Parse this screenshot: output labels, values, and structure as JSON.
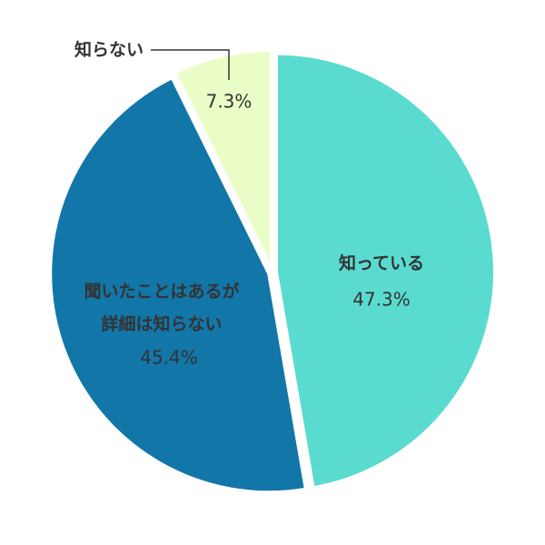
{
  "chart_data": {
    "type": "pie",
    "categories": [
      "知っている",
      "聞いたことはあるが\n詳細は知らない",
      "知らない"
    ],
    "values": [
      47.3,
      45.4,
      7.3
    ],
    "value_labels": [
      "47.3%",
      "45.4%",
      "7.3%"
    ],
    "colors": [
      "#5adbcf",
      "#1276a8",
      "#ebfdc6"
    ]
  }
}
